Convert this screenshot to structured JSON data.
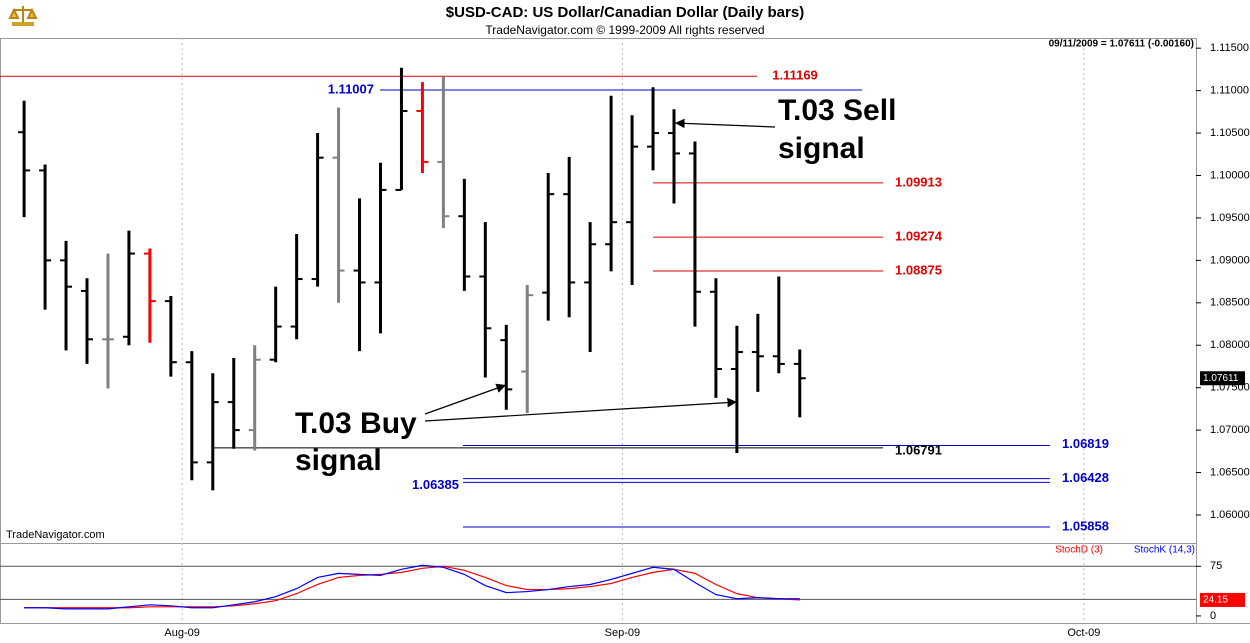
{
  "chart_data": [
    {
      "type": "ohlc",
      "title": "$USD-CAD:  US Dollar/Canadian Dollar  (Daily bars)",
      "subtitle": "TradeNavigator.com © 1999-2009 All rights reserved",
      "watermark": "TradeNavigator.com",
      "info": "09/11/2009 = 1.07611 (-0.00160)",
      "categories": [
        null,
        null,
        null,
        null,
        null,
        null,
        null,
        null,
        null,
        null,
        null,
        null,
        null,
        null,
        null,
        null,
        null,
        null,
        null,
        null,
        null,
        null,
        null,
        null,
        null,
        null,
        null,
        null,
        null,
        null,
        null,
        null,
        null,
        null,
        null,
        null,
        null,
        null
      ],
      "open": [
        1.1051,
        1.1006,
        1.09,
        1.0864,
        1.0807,
        1.081,
        1.0908,
        1.0852,
        1.078,
        1.0662,
        1.0733,
        1.07,
        1.0783,
        1.0822,
        1.0878,
        1.1021,
        1.0888,
        1.0874,
        1.0983,
        1.1076,
        1.1016,
        1.0952,
        1.0881,
        1.0806,
        1.0769,
        1.0862,
        1.0978,
        1.0874,
        1.0919,
        1.0945,
        1.1034,
        1.105,
        1.1026,
        1.0863,
        1.0772,
        1.0792,
        1.0787,
        1.0778
      ],
      "high": [
        1.1088,
        1.1013,
        1.0923,
        1.0879,
        1.0908,
        1.0935,
        1.0914,
        1.0858,
        1.0793,
        1.0767,
        1.0785,
        1.08,
        1.0869,
        1.0931,
        1.105,
        1.108,
        1.0973,
        1.1015,
        1.1127,
        1.111,
        1.1117,
        1.0996,
        1.0945,
        1.0824,
        1.0871,
        1.1003,
        1.1022,
        1.0945,
        1.1094,
        1.1071,
        1.1104,
        1.1078,
        1.104,
        1.0879,
        1.0823,
        1.0837,
        1.0881,
        1.0795
      ],
      "low": [
        1.0951,
        1.0842,
        1.0794,
        1.0778,
        1.0749,
        1.08,
        1.0803,
        1.0763,
        1.0641,
        1.0629,
        1.0678,
        1.0676,
        1.078,
        1.0807,
        1.0869,
        1.085,
        1.0793,
        1.0814,
        1.0983,
        1.1003,
        1.0938,
        1.0864,
        1.0762,
        1.0724,
        1.072,
        1.0829,
        1.0833,
        1.0792,
        1.0887,
        1.0871,
        1.1006,
        1.0967,
        1.0822,
        1.0738,
        1.0673,
        1.0745,
        1.0767,
        1.0715
      ],
      "close": [
        1.1006,
        1.09,
        1.0869,
        1.0807,
        1.0807,
        1.0908,
        1.0852,
        1.078,
        1.0662,
        1.0733,
        1.07,
        1.0783,
        1.0822,
        1.0878,
        1.1021,
        1.0888,
        1.0874,
        1.0983,
        1.1076,
        1.1016,
        1.0952,
        1.0881,
        1.082,
        1.0748,
        1.0859,
        1.0978,
        1.0874,
        1.0919,
        1.0945,
        1.1034,
        1.105,
        1.1026,
        1.0863,
        1.0772,
        1.0792,
        1.0787,
        1.0778,
        1.07611
      ],
      "colors": [
        "#000000",
        "#000000",
        "#000000",
        "#000000",
        "#808080",
        "#000000",
        "#ff0000",
        "#000000",
        "#000000",
        "#000000",
        "#000000",
        "#808080",
        "#000000",
        "#000000",
        "#000000",
        "#808080",
        "#000000",
        "#000000",
        "#000000",
        "#ff0000",
        "#808080",
        "#000000",
        "#000000",
        "#000000",
        "#808080",
        "#000000",
        "#000000",
        "#000000",
        "#000000",
        "#000000",
        "#000000",
        "#000000",
        "#000000",
        "#000000",
        "#000000",
        "#000000",
        "#000000",
        "#000000"
      ],
      "ylim": [
        1.0567,
        1.1162
      ],
      "yticks": [
        {
          "value": 1.115,
          "label": "1.11500"
        },
        {
          "value": 1.11,
          "label": "1.11000"
        },
        {
          "value": 1.105,
          "label": "1.10500"
        },
        {
          "value": 1.1,
          "label": "1.10000"
        },
        {
          "value": 1.095,
          "label": "1.09500"
        },
        {
          "value": 1.09,
          "label": "1.09000"
        },
        {
          "value": 1.085,
          "label": "1.08500"
        },
        {
          "value": 1.08,
          "label": "1.08000"
        },
        {
          "value": 1.075,
          "label": "1.07500"
        },
        {
          "value": 1.07,
          "label": "1.07000"
        },
        {
          "value": 1.065,
          "label": "1.06500"
        },
        {
          "value": 1.06,
          "label": "1.06000"
        }
      ],
      "levels": [
        {
          "value": 1.11169,
          "color": "#e00000"
        },
        {
          "value": 1.11007,
          "color": "#0000cc"
        },
        {
          "value": 1.09913,
          "color": "#e00000"
        },
        {
          "value": 1.09274,
          "color": "#e00000"
        },
        {
          "value": 1.08875,
          "color": "#e00000"
        },
        {
          "value": 1.06819,
          "color": "#0000cc"
        },
        {
          "value": 1.06791,
          "color": "#000000"
        },
        {
          "value": 1.06428,
          "color": "#0000cc"
        },
        {
          "value": 1.06385,
          "color": "#0000cc"
        },
        {
          "value": 1.05858,
          "color": "#0000cc"
        }
      ],
      "annotations": [
        {
          "lines": [
            "T.03 Sell",
            "signal"
          ]
        },
        {
          "lines": [
            "T.03 Buy",
            "signal"
          ]
        }
      ]
    },
    {
      "type": "line",
      "series": [
        {
          "name": "StochD (3)",
          "color": "#ff0000",
          "values": [
            12.3,
            12.3,
            12.3,
            12.3,
            12.3,
            12.3,
            13.8,
            13.8,
            13.8,
            13.8,
            15.3,
            18.4,
            23.0,
            33.7,
            47.5,
            58.2,
            61.3,
            62.8,
            65.8,
            72.0,
            75.0,
            68.9,
            58.2,
            45.9,
            39.8,
            39.8,
            41.3,
            44.4,
            49.0,
            58.2,
            65.8,
            70.4,
            64.3,
            47.5,
            33.7,
            27.6,
            26.0,
            24.15
          ]
        },
        {
          "name": "StochK (14,3)",
          "color": "#0000ff",
          "values": [
            12.3,
            12.3,
            10.7,
            10.7,
            10.7,
            13.8,
            16.8,
            15.3,
            12.3,
            12.3,
            16.8,
            21.4,
            29.1,
            41.3,
            58.2,
            64.3,
            62.8,
            61.3,
            70.4,
            76.6,
            73.5,
            62.8,
            45.9,
            35.2,
            36.8,
            39.8,
            44.4,
            47.5,
            55.1,
            64.3,
            73.5,
            70.4,
            50.5,
            32.2,
            26.0,
            27.6,
            26.0,
            26.0
          ]
        }
      ],
      "ylim": [
        -10.7,
        108.7
      ],
      "yticks": [
        75,
        0
      ],
      "hlines": [
        75,
        25
      ],
      "xlim": [
        -1.15,
        55.9
      ],
      "xticks": [
        {
          "value": 7.54,
          "label": "Aug-09"
        },
        {
          "value": 28.54,
          "label": "Sep-09"
        },
        {
          "value": 50.55,
          "label": "Oct-09"
        }
      ],
      "xgrid": true
    }
  ]
}
